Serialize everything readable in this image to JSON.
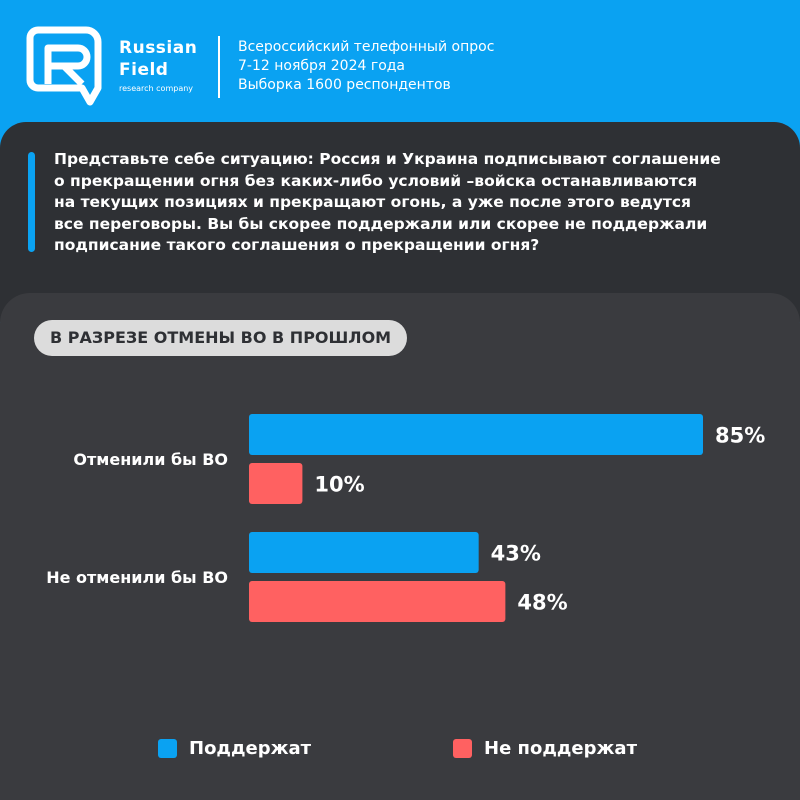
{
  "header": {
    "brand_line1": "Russian",
    "brand_line2": "Field",
    "brand_sub": "research company",
    "survey_lines": [
      "Всероссийский телефонный опрос",
      "7-12 ноября 2024 года",
      "Выборка 1600 респондентов"
    ]
  },
  "question": {
    "lines": [
      "Представьте себе ситуацию: Россия и Украина подписывают соглашение",
      "о прекращении огня без каких-либо условий –войска останавливаются",
      "на текущих позициях и прекращают огонь, а уже после этого ведутся",
      "все переговоры. Вы бы скорее поддержали или скорее не поддержали",
      "подписание такого соглашения о прекращении огня?"
    ]
  },
  "section_label": "В РАЗРЕЗЕ ОТМЕНЫ ВО В ПРОШЛОМ",
  "colors": {
    "support": "#0aa2f2",
    "not_support": "#ff6161",
    "header_bg": "#0aa2f2",
    "panel_dark": "#2e3034",
    "panel_chart": "#3a3b3f"
  },
  "chart_data": {
    "type": "bar",
    "orientation": "horizontal",
    "categories": [
      "Отменили бы ВО",
      "Не отменили бы ВО"
    ],
    "series": [
      {
        "name": "Поддержат",
        "values": [
          85,
          43
        ],
        "labels": [
          "85%",
          "43%"
        ]
      },
      {
        "name": "Не поддержат",
        "values": [
          10,
          48
        ],
        "labels": [
          "10%",
          "48%"
        ]
      }
    ],
    "xlim": [
      0,
      100
    ],
    "grid": false,
    "legend_position": "bottom"
  }
}
